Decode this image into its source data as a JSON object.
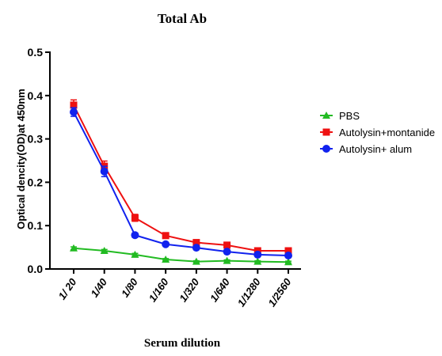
{
  "chart_data": {
    "type": "line",
    "title": "Total Ab",
    "xlabel": "Serum dilution",
    "ylabel": "Optical dencity(OD)at 450nm",
    "categories": [
      "1/ 20",
      "1/40",
      "1/80",
      "1/160",
      "1/320",
      "1/640",
      "1/1280",
      "1/2560"
    ],
    "ylim": [
      0,
      0.5
    ],
    "yticks": [
      0.0,
      0.1,
      0.2,
      0.3,
      0.4,
      0.5
    ],
    "ytick_labels": [
      "0.0",
      "0.1",
      "0.2",
      "0.3",
      "0.4",
      "0.5"
    ],
    "legend_position": "right",
    "grid": false,
    "series": [
      {
        "name": "PBS",
        "color": "#22bb22",
        "marker": "triangle",
        "values": [
          0.048,
          0.042,
          0.033,
          0.022,
          0.017,
          0.019,
          0.017,
          0.016
        ],
        "errors": [
          0.003,
          0.003,
          0.003,
          0.002,
          0.002,
          0.002,
          0.002,
          0.002
        ]
      },
      {
        "name": "Autolysin+montanide",
        "color": "#ee1111",
        "marker": "square",
        "values": [
          0.378,
          0.237,
          0.118,
          0.077,
          0.061,
          0.055,
          0.042,
          0.042
        ],
        "errors": [
          0.012,
          0.012,
          0.008,
          0.004,
          0.004,
          0.004,
          0.003,
          0.003
        ]
      },
      {
        "name": "Autolysin+ alum",
        "color": "#1122ee",
        "marker": "circle",
        "values": [
          0.362,
          0.225,
          0.078,
          0.057,
          0.049,
          0.04,
          0.033,
          0.031
        ],
        "errors": [
          0.01,
          0.012,
          0.005,
          0.003,
          0.003,
          0.003,
          0.002,
          0.002
        ]
      }
    ]
  }
}
